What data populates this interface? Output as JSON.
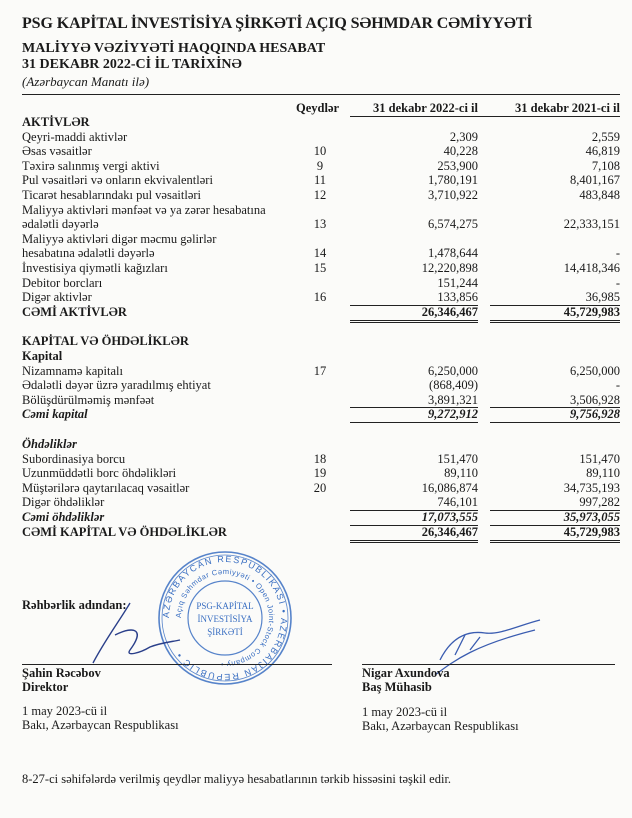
{
  "header": {
    "company": "PSG KAPİTAL İNVESTİSİYA ŞİRKƏTİ AÇIQ SƏHMDAR CƏMİYYƏTİ",
    "report_title": "MALİYYƏ VƏZİYYƏTİ HAQQINDA HESABAT",
    "date_line": "31 DEKABR 2022-Cİ İL TARİXİNƏ",
    "currency": "(Azərbaycan Manatı ilə)"
  },
  "columns": {
    "notes": "Qeydlər",
    "current": "31 dekabr 2022-ci il",
    "prior": "31 dekabr 2021-ci il"
  },
  "rows": [
    {
      "label": "AKTİVLƏR",
      "note": "",
      "v2022": "",
      "v2021": "",
      "style": "b"
    },
    {
      "label": "Qeyri-maddi aktivlər",
      "note": "",
      "v2022": "2,309",
      "v2021": "2,559"
    },
    {
      "label": "Əsas vəsaitlər",
      "note": "10",
      "v2022": "40,228",
      "v2021": "46,819"
    },
    {
      "label": "Təxirə salınmış vergi aktivi",
      "note": "9",
      "v2022": "253,900",
      "v2021": "7,108"
    },
    {
      "label": "Pul vəsaitləri və onların ekvivalentləri",
      "note": "11",
      "v2022": "1,780,191",
      "v2021": "8,401,167"
    },
    {
      "label": "Ticarət hesablarındakı pul vəsaitləri",
      "note": "12",
      "v2022": "3,710,922",
      "v2021": "483,848"
    },
    {
      "label": "Maliyyə aktivləri mənfəət və ya zərər hesabatına",
      "note": "",
      "v2022": "",
      "v2021": ""
    },
    {
      "label": "ədalətli dəyərlə",
      "note": "13",
      "v2022": "6,574,275",
      "v2021": "22,333,151"
    },
    {
      "label": "Maliyyə aktivləri digər məcmu gəlirlər",
      "note": "",
      "v2022": "",
      "v2021": ""
    },
    {
      "label": "hesabatına ədalətli dəyərlə",
      "note": "14",
      "v2022": "1,478,644",
      "v2021": "-"
    },
    {
      "label": "İnvestisiya qiymətli kağızları",
      "note": "15",
      "v2022": "12,220,898",
      "v2021": "14,418,346"
    },
    {
      "label": "Debitor borcları",
      "note": "",
      "v2022": "151,244",
      "v2021": "-"
    },
    {
      "label": "Digər aktivlər",
      "note": "16",
      "v2022": "133,856",
      "v2021": "36,985"
    },
    {
      "label": "CƏMİ AKTİVLƏR",
      "note": "",
      "v2022": "26,346,467",
      "v2021": "45,729,983",
      "style": "b",
      "lineAbove": true,
      "lineBelow": "double"
    },
    {
      "label": "KAPİTAL VƏ ÖHDƏLİKLƏR",
      "note": "",
      "v2022": "",
      "v2021": "",
      "style": "b",
      "gap": true
    },
    {
      "label": "Kapital",
      "note": "",
      "v2022": "",
      "v2021": "",
      "style": "b"
    },
    {
      "label": "Nizamnamə kapitalı",
      "note": "17",
      "v2022": "6,250,000",
      "v2021": "6,250,000"
    },
    {
      "label": "Ədalətli dəyər üzrə yaradılmış ehtiyat",
      "note": "",
      "v2022": "(868,409)",
      "v2021": "-"
    },
    {
      "label": "Bölüşdürülməmiş mənfəət",
      "note": "",
      "v2022": "3,891,321",
      "v2021": "3,506,928"
    },
    {
      "label": "Cəmi kapital",
      "note": "",
      "v2022": "9,272,912",
      "v2021": "9,756,928",
      "style": "b i",
      "lineAbove": true,
      "lineBelow": "single"
    },
    {
      "label": "Öhdəliklər",
      "note": "",
      "v2022": "",
      "v2021": "",
      "style": "b i",
      "gap": true
    },
    {
      "label": "Subordinasiya borcu",
      "note": "18",
      "v2022": "151,470",
      "v2021": "151,470"
    },
    {
      "label": "Uzunmüddətli borc öhdəlikləri",
      "note": "19",
      "v2022": "89,110",
      "v2021": "89,110"
    },
    {
      "label": "Müştərilərə qaytarılacaq vəsaitlər",
      "note": "20",
      "v2022": "16,086,874",
      "v2021": "34,735,193"
    },
    {
      "label": "Digər öhdəliklər",
      "note": "",
      "v2022": "746,101",
      "v2021": "997,282"
    },
    {
      "label": "Cəmi öhdəliklər",
      "note": "",
      "v2022": "17,073,555",
      "v2021": "35,973,055",
      "style": "b i",
      "lineAbove": true,
      "lineBelow": "single"
    },
    {
      "label": "CƏMİ KAPİTAL VƏ ÖHDƏLİKLƏR",
      "note": "",
      "v2022": "26,346,467",
      "v2021": "45,729,983",
      "style": "b",
      "lineBelow": "double"
    }
  ],
  "signatures": {
    "on_behalf": "Rəhbərlik adından:",
    "left": {
      "name": "Şahin Rəcəbov",
      "title": "Direktor",
      "date": "1 may 2023-cü il",
      "place": "Bakı, Azərbaycan Respublikası"
    },
    "right": {
      "name": "Nigar Axundova",
      "title": "Baş Mühasib",
      "date": "1 may 2023-cü il",
      "place": "Bakı, Azərbaycan Respublikası"
    }
  },
  "stamp": {
    "outer_text": "AZƏRBAYCAN RESPUBLİKASI • AZERBAIJAN REPUBLIC •",
    "inner_text": "Açıq Səhmdar Cəmiyyəti • Open Joint-Stock Company •",
    "center_lines": [
      "PSG-KAPİTAL",
      "İNVESTİSİYA",
      "ŞİRKƏTİ"
    ],
    "color": "#3a6fc2"
  },
  "footer": "8-27-ci səhifələrdə verilmiş qeydlər maliyyə hesabatlarının tərkib hissəsini təşkil edir."
}
